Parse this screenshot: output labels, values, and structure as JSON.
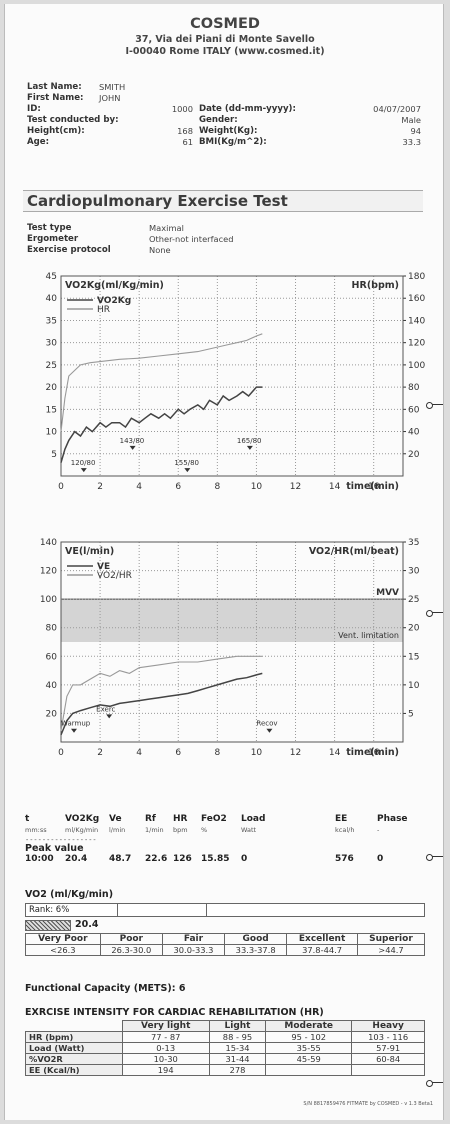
{
  "header": {
    "company": "COSMED",
    "address1": "37, Via dei Piani di Monte Savello",
    "address2": "I-00040 Rome ITALY (www.cosmed.it)"
  },
  "patient": {
    "last_name_label": "Last Name:",
    "last_name": "SMITH",
    "first_name_label": "First Name:",
    "first_name": "JOHN",
    "id_label": "ID:",
    "id": "1000",
    "conducted_label": "Test conducted by:",
    "height_label": "Height(cm):",
    "height": "168",
    "age_label": "Age:",
    "age": "61",
    "date_label": "Date (dd-mm-yyyy):",
    "date": "04/07/2007",
    "gender_label": "Gender:",
    "gender": "Male",
    "weight_label": "Weight(Kg):",
    "weight": "94",
    "bmi_label": "BMI(Kg/m^2):",
    "bmi": "33.3"
  },
  "section_title": "Cardiopulmonary Exercise Test",
  "test_info": [
    {
      "label": "Test type",
      "value": "Maximal"
    },
    {
      "label": "Ergometer",
      "value": "Other-not interfaced"
    },
    {
      "label": "Exercise protocol",
      "value": "None"
    }
  ],
  "chart_data": [
    {
      "type": "line",
      "ylabel": "VO2Kg(ml/Kg/min)",
      "y2label": "HR(bpm)",
      "xlabel": "time(min)",
      "xlim": [
        0,
        17.5
      ],
      "ylim": [
        0,
        45
      ],
      "y2lim": [
        0,
        180
      ],
      "x_ticks": [
        "0",
        "2",
        "4",
        "6",
        "8",
        "10",
        "12",
        "14",
        "16"
      ],
      "y_ticks": [
        "5",
        "10",
        "15",
        "20",
        "25",
        "30",
        "35",
        "40",
        "45"
      ],
      "y2_ticks": [
        "20",
        "40",
        "60",
        "80",
        "100",
        "120",
        "140",
        "160",
        "180"
      ],
      "grid": "dotted",
      "legend": "top-left",
      "series": [
        {
          "name": "VO2Kg",
          "axis": "left",
          "color": "#444444",
          "x": [
            0,
            0.2,
            0.4,
            0.7,
            1,
            1.3,
            1.6,
            2,
            2.3,
            2.6,
            3,
            3.3,
            3.6,
            4,
            4.3,
            4.6,
            5,
            5.3,
            5.6,
            6,
            6.3,
            6.6,
            7,
            7.3,
            7.6,
            8,
            8.3,
            8.6,
            9,
            9.3,
            9.6,
            10,
            10.3
          ],
          "y": [
            3,
            6,
            8,
            10,
            9,
            11,
            10,
            12,
            11,
            12,
            12,
            11,
            13,
            12,
            13,
            14,
            13,
            14,
            13,
            15,
            14,
            15,
            16,
            15,
            17,
            16,
            18,
            17,
            18,
            19,
            18,
            20,
            20
          ]
        },
        {
          "name": "HR",
          "axis": "right",
          "color": "#999999",
          "x": [
            0,
            0.2,
            0.4,
            0.7,
            1,
            1.5,
            2,
            2.5,
            3,
            4,
            5,
            6,
            7,
            8,
            8.5,
            9,
            9.5,
            10,
            10.3
          ],
          "y": [
            40,
            70,
            90,
            95,
            100,
            102,
            103,
            104,
            105,
            106,
            108,
            110,
            112,
            116,
            118,
            120,
            122,
            126,
            128
          ]
        }
      ],
      "annotations": [
        {
          "text": "120/80",
          "x": 0.5,
          "y": 2
        },
        {
          "text": "143/80",
          "x": 3,
          "y": 7
        },
        {
          "text": "155/80",
          "x": 5.8,
          "y": 2
        },
        {
          "text": "165/80",
          "x": 9,
          "y": 7
        }
      ]
    },
    {
      "type": "line",
      "ylabel": "VE(l/min)",
      "y2label": "VO2/HR(ml/beat)",
      "xlabel": "time(min)",
      "xlim": [
        0,
        17.5
      ],
      "ylim": [
        0,
        140
      ],
      "y2lim": [
        0,
        35
      ],
      "x_ticks": [
        "0",
        "2",
        "4",
        "6",
        "8",
        "10",
        "12",
        "14",
        "16"
      ],
      "y_ticks": [
        "20",
        "40",
        "60",
        "80",
        "100",
        "120",
        "140"
      ],
      "y2_ticks": [
        "5",
        "10",
        "15",
        "20",
        "25",
        "30",
        "35"
      ],
      "grid": "dotted",
      "legend": "top-left",
      "band": {
        "from": 70,
        "to": 100,
        "label": "Vent. limitation",
        "top_label": "MVV"
      },
      "series": [
        {
          "name": "VE",
          "axis": "left",
          "color": "#444444",
          "x": [
            0,
            0.3,
            0.6,
            1,
            1.5,
            2,
            2.5,
            3,
            3.5,
            4,
            4.5,
            5,
            5.5,
            6,
            6.5,
            7,
            7.5,
            8,
            8.5,
            9,
            9.5,
            10,
            10.3
          ],
          "y": [
            5,
            15,
            20,
            22,
            24,
            26,
            25,
            27,
            28,
            29,
            30,
            31,
            32,
            33,
            34,
            36,
            38,
            40,
            42,
            44,
            45,
            47,
            48
          ]
        },
        {
          "name": "VO2/HR",
          "axis": "right",
          "color": "#999999",
          "x": [
            0,
            0.3,
            0.6,
            1,
            1.5,
            2,
            2.5,
            3,
            3.5,
            4,
            5,
            6,
            7,
            8,
            9,
            10,
            10.3
          ],
          "y": [
            2,
            8,
            10,
            10,
            11,
            12,
            11.5,
            12.5,
            12,
            13,
            13.5,
            14,
            14,
            14.5,
            15,
            15,
            15
          ]
        }
      ],
      "annotations": [
        {
          "text": "Warmup",
          "x": 0,
          "y": 10
        },
        {
          "text": "Exerc",
          "x": 1.8,
          "y": 20
        },
        {
          "text": "Recov",
          "x": 10,
          "y": 10
        }
      ]
    }
  ],
  "results": {
    "headers": [
      "t",
      "VO2Kg",
      "Ve",
      "Rf",
      "HR",
      "FeO2",
      "Load",
      "EE",
      "Phase"
    ],
    "units": [
      "mm:ss",
      "ml/Kg/min",
      "l/min",
      "1/min",
      "bpm",
      "%",
      "Watt",
      "kcal/h",
      "-"
    ],
    "dashes": "-----------------",
    "peak_label": "Peak value",
    "peak": [
      "10:00",
      "20.4",
      "48.7",
      "22.6",
      "126",
      "15.85",
      "0",
      "576",
      "0"
    ]
  },
  "rank": {
    "title": "VO2 (ml/Kg/min)",
    "rank_label": "Rank: 6%",
    "value": "20.4",
    "value_fraction": 0.06,
    "levels": [
      {
        "name": "Very Poor",
        "range": "<26.3"
      },
      {
        "name": "Poor",
        "range": "26.3-30.0"
      },
      {
        "name": "Fair",
        "range": "30.0-33.3"
      },
      {
        "name": "Good",
        "range": "33.3-37.8"
      },
      {
        "name": "Excellent",
        "range": "37.8-44.7"
      },
      {
        "name": "Superior",
        "range": ">44.7"
      }
    ]
  },
  "functional_capacity": "Functional Capacity (METS): 6",
  "intensity": {
    "title": "EXRCISE INTENSITY FOR CARDIAC REHABILITATION (HR)",
    "columns": [
      "Very light",
      "Light",
      "Moderate",
      "Heavy"
    ],
    "rows": [
      {
        "label": "HR (bpm)",
        "cells": [
          "77 - 87",
          "88 - 95",
          "95 - 102",
          "103 - 116"
        ]
      },
      {
        "label": "Load (Watt)",
        "cells": [
          "0-13",
          "15-34",
          "35-55",
          "57-91"
        ]
      },
      {
        "label": "%VO2R",
        "cells": [
          "10-30",
          "31-44",
          "45-59",
          "60-84"
        ]
      },
      {
        "label": "EE (Kcal/h)",
        "cells": [
          "194",
          "278",
          "",
          ""
        ]
      }
    ]
  },
  "footer": "S/N 8817859476 FITMATE by COSMED - v 1.3 Beta1"
}
